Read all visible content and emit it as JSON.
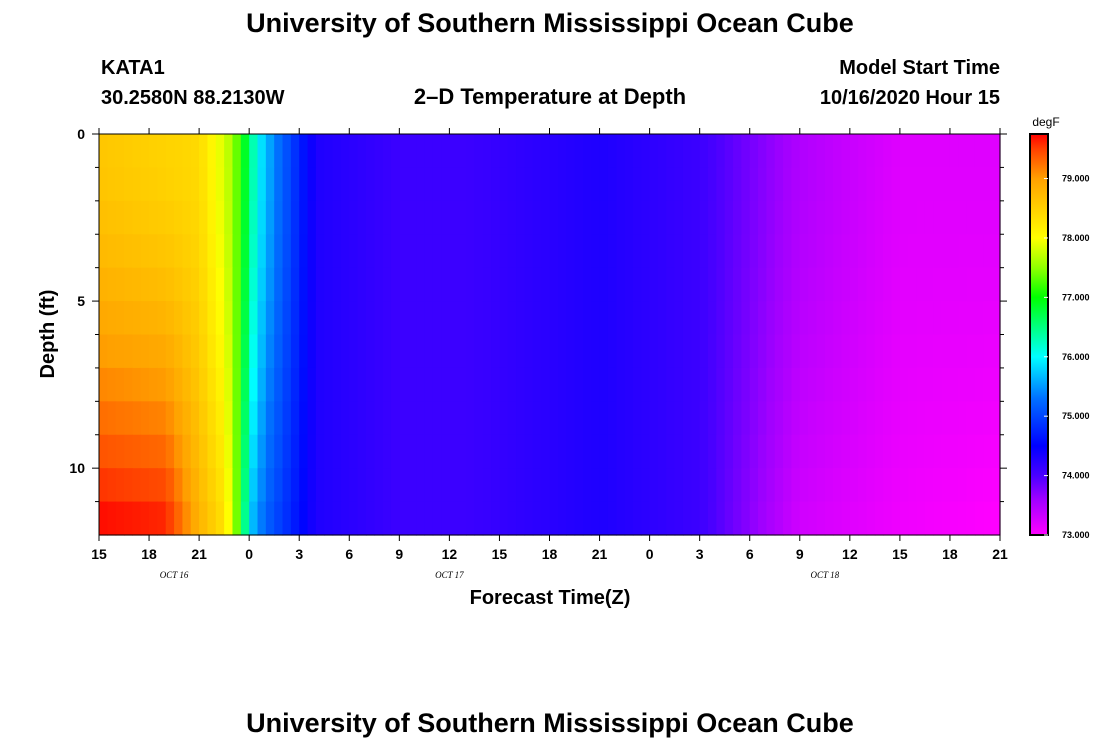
{
  "header": {
    "title_top": "University of Southern Mississippi Ocean Cube",
    "title_bottom": "University of Southern Mississippi Ocean Cube",
    "station_id": "KATA1",
    "station_coords": "30.2580N 88.2130W",
    "model_start_label": "Model Start Time",
    "model_start_value": "10/16/2020 Hour 15",
    "subtitle": "2–D Temperature at Depth"
  },
  "chart_data": {
    "type": "heatmap",
    "title": "2–D Temperature at Depth",
    "xlabel": "Forecast Time(Z)",
    "ylabel": "Depth (ft)",
    "x_tick_labels": [
      "15",
      "18",
      "21",
      "0",
      "3",
      "6",
      "9",
      "12",
      "15",
      "18",
      "21",
      "0",
      "3",
      "6",
      "9",
      "12",
      "15",
      "18",
      "21"
    ],
    "x_range_hours": [
      0,
      54
    ],
    "x_tick_step_hours": 3,
    "date_labels": [
      {
        "text": "OCT 16",
        "hour": 4.5
      },
      {
        "text": "OCT 17",
        "hour": 21
      },
      {
        "text": "OCT 18",
        "hour": 43.5
      }
    ],
    "y_tick_labels": [
      "0",
      "5",
      "10"
    ],
    "y_tick_values": [
      0,
      5,
      10
    ],
    "ylim": [
      0,
      12
    ],
    "y_reversed": true,
    "depth_levels_ft": [
      0.5,
      1.5,
      2.5,
      3.5,
      4.5,
      5.5,
      6.5,
      7.5,
      8.5,
      9.5,
      10.5,
      11.5
    ],
    "surface_profile": {
      "hours": [
        0,
        3,
        6,
        8,
        9,
        9.5,
        10.5,
        13,
        18,
        22,
        30,
        36,
        42,
        48,
        54
      ],
      "values": [
        78.6,
        78.5,
        78.4,
        77.6,
        76.6,
        76.0,
        75.4,
        74.3,
        74.1,
        74.1,
        74.3,
        74.1,
        73.5,
        73.2,
        73.2
      ]
    },
    "bottom_profile": {
      "hours": [
        0,
        4,
        6,
        7.5,
        8.5,
        9,
        10,
        13,
        18,
        22,
        30,
        36,
        42,
        48,
        54
      ],
      "values": [
        79.7,
        79.6,
        78.8,
        78.3,
        77.1,
        75.8,
        75.2,
        74.3,
        74.1,
        74.1,
        74.3,
        74.1,
        73.3,
        73.1,
        73.0
      ]
    },
    "colorbar": {
      "unit": "degF",
      "min": 73.0,
      "max": 79.75,
      "tick_labels": [
        "73.000",
        "74.000",
        "75.000",
        "76.000",
        "77.000",
        "78.000",
        "79.000"
      ],
      "tick_values": [
        73,
        74,
        75,
        76,
        77,
        78,
        79
      ],
      "stops": [
        {
          "v": 73.0,
          "c": "#ff00ff"
        },
        {
          "v": 73.6,
          "c": "#a000ff"
        },
        {
          "v": 74.0,
          "c": "#4a00ff"
        },
        {
          "v": 74.5,
          "c": "#0000ff"
        },
        {
          "v": 75.3,
          "c": "#0070ff"
        },
        {
          "v": 76.0,
          "c": "#00ffff"
        },
        {
          "v": 76.5,
          "c": "#00ff80"
        },
        {
          "v": 77.0,
          "c": "#00ff00"
        },
        {
          "v": 77.5,
          "c": "#90ff00"
        },
        {
          "v": 78.0,
          "c": "#ffff00"
        },
        {
          "v": 78.5,
          "c": "#ffd000"
        },
        {
          "v": 79.0,
          "c": "#ffa000"
        },
        {
          "v": 79.5,
          "c": "#ff4000"
        },
        {
          "v": 79.75,
          "c": "#ff0000"
        }
      ]
    }
  }
}
